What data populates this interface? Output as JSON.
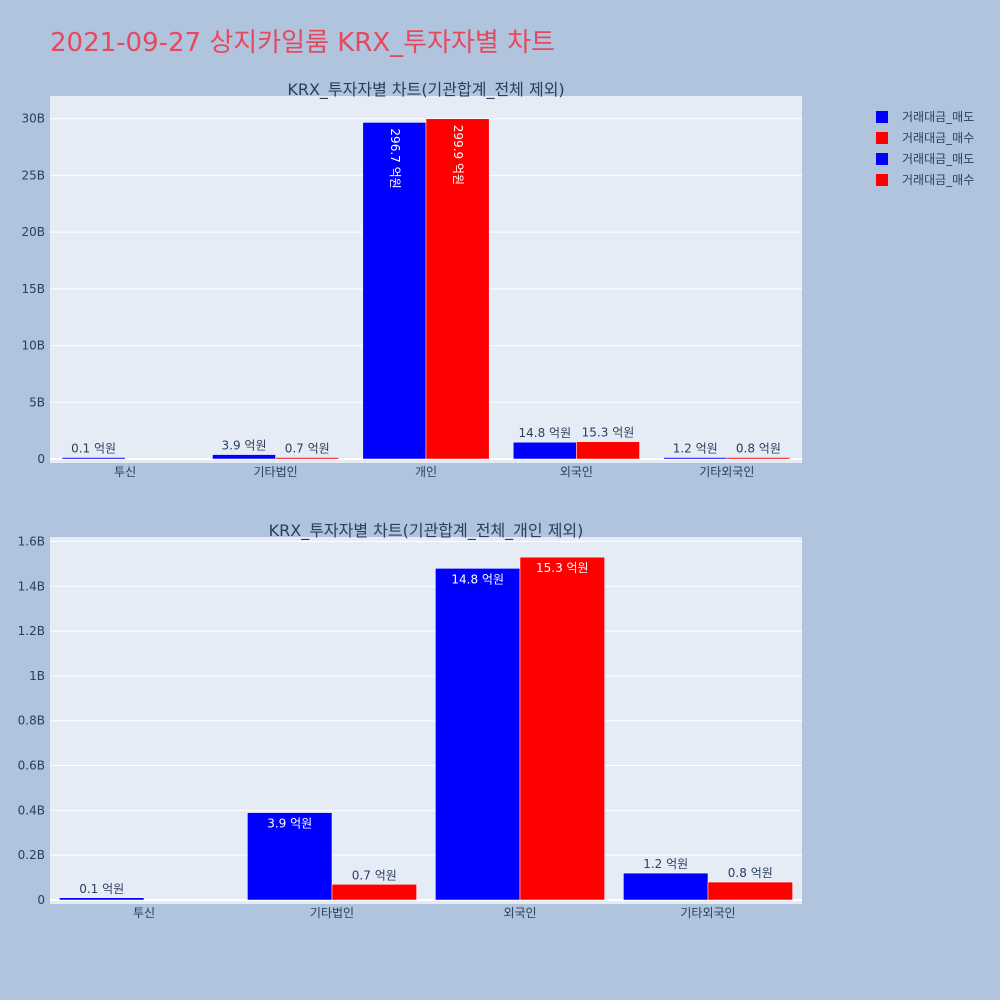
{
  "title": "2021-09-27 상지카일룸 KRX_투자자별 차트",
  "legend": [
    {
      "label": "거래대금_매도",
      "color": "#0000ff"
    },
    {
      "label": "거래대금_매수",
      "color": "#ff0000"
    },
    {
      "label": "거래대금_매도",
      "color": "#0000ff"
    },
    {
      "label": "거래대금_매수",
      "color": "#ff0000"
    }
  ],
  "chart_data": [
    {
      "type": "bar",
      "title": "KRX_투자자별 차트(기관합계_전체 제외)",
      "categories": [
        "투신",
        "기타법인",
        "개인",
        "외국인",
        "기타외국인"
      ],
      "ylim": [
        0,
        32000000000
      ],
      "yticks": [
        0,
        5000000000,
        10000000000,
        15000000000,
        20000000000,
        25000000000,
        30000000000
      ],
      "ytick_labels": [
        "0",
        "5B",
        "10B",
        "15B",
        "20B",
        "25B",
        "30B"
      ],
      "grid": true,
      "series": [
        {
          "name": "거래대금_매도",
          "color": "#0000ff",
          "values": [
            10000000,
            390000000,
            29670000000,
            1480000000,
            120000000
          ],
          "labels": [
            "0.1 억원",
            "3.9 억원",
            "296.7 억원",
            "14.8 억원",
            "1.2 억원"
          ]
        },
        {
          "name": "거래대금_매수",
          "color": "#ff0000",
          "values": [
            0,
            70000000,
            29990000000,
            1530000000,
            80000000
          ],
          "labels": [
            "",
            "0.7 억원",
            "299.9 억원",
            "15.3 억원",
            "0.8 억원"
          ]
        }
      ]
    },
    {
      "type": "bar",
      "title": "KRX_투자자별 차트(기관합계_전체_개인 제외)",
      "categories": [
        "투신",
        "기타법인",
        "외국인",
        "기타외국인"
      ],
      "ylim": [
        0,
        1620000000
      ],
      "yticks": [
        0,
        200000000,
        400000000,
        600000000,
        800000000,
        1000000000,
        1200000000,
        1400000000,
        1600000000
      ],
      "ytick_labels": [
        "0",
        "0.2B",
        "0.4B",
        "0.6B",
        "0.8B",
        "1B",
        "1.2B",
        "1.4B",
        "1.6B"
      ],
      "grid": true,
      "series": [
        {
          "name": "거래대금_매도",
          "color": "#0000ff",
          "values": [
            10000000,
            390000000,
            1480000000,
            120000000
          ],
          "labels": [
            "0.1 억원",
            "3.9 억원",
            "14.8 억원",
            "1.2 억원"
          ]
        },
        {
          "name": "거래대금_매수",
          "color": "#ff0000",
          "values": [
            0,
            70000000,
            1530000000,
            80000000
          ],
          "labels": [
            "",
            "0.7 억원",
            "15.3 억원",
            "0.8 억원"
          ]
        }
      ]
    }
  ]
}
